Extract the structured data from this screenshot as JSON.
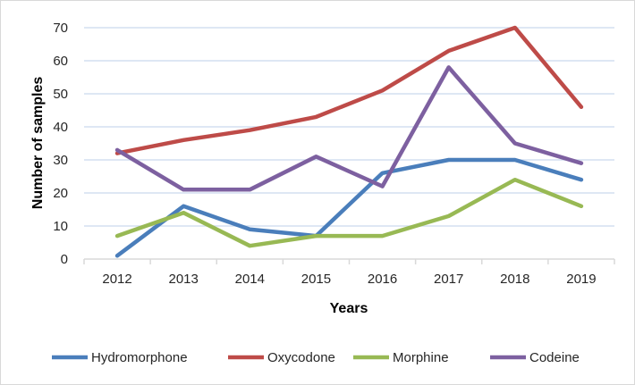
{
  "chart_data": {
    "type": "line",
    "title": "",
    "xlabel": "Years",
    "ylabel": "Number of samples",
    "categories": [
      "2012",
      "2013",
      "2014",
      "2015",
      "2016",
      "2017",
      "2018",
      "2019"
    ],
    "ylim": [
      0,
      70
    ],
    "yticks": [
      0,
      10,
      20,
      30,
      40,
      50,
      60,
      70
    ],
    "grid": true,
    "legend_position": "bottom",
    "series": [
      {
        "name": "Hydromorphone",
        "color": "#4a7ebb",
        "values": [
          1,
          16,
          9,
          7,
          26,
          30,
          30,
          24
        ]
      },
      {
        "name": "Oxycodone",
        "color": "#be4b48",
        "values": [
          32,
          36,
          39,
          43,
          51,
          63,
          70,
          46
        ]
      },
      {
        "name": "Morphine",
        "color": "#98b954",
        "values": [
          7,
          14,
          4,
          7,
          7,
          13,
          24,
          16
        ]
      },
      {
        "name": "Codeine",
        "color": "#7d60a0",
        "values": [
          33,
          21,
          21,
          31,
          22,
          58,
          35,
          29
        ]
      }
    ]
  }
}
